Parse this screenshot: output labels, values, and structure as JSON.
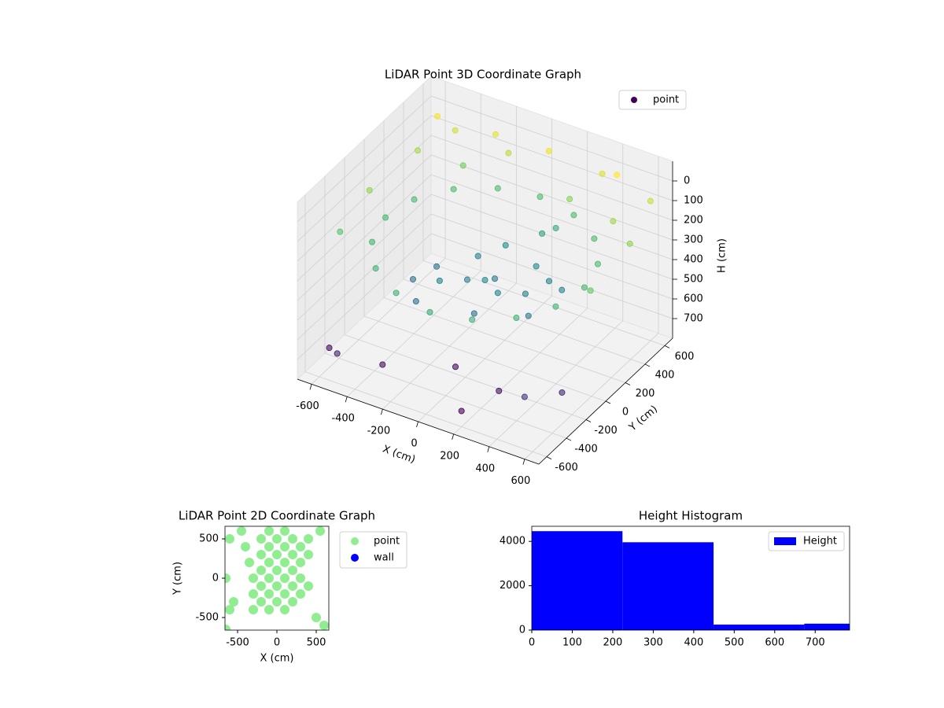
{
  "chart_data": [
    {
      "type": "scatter3d",
      "title": "LiDAR Point 3D Coordinate Graph",
      "xlabel": "X (cm)",
      "ylabel": "Y (cm)",
      "zlabel": "H (cm)",
      "xlim": [
        -680,
        680
      ],
      "ylim": [
        -680,
        680
      ],
      "zlim": [
        800,
        -100
      ],
      "xticks": [
        -600,
        -400,
        -200,
        0,
        200,
        400,
        600
      ],
      "yticks": [
        -600,
        -400,
        -200,
        0,
        200,
        400,
        600
      ],
      "zticks": [
        0,
        100,
        200,
        300,
        400,
        500,
        600,
        700
      ],
      "colormap": "viridis",
      "grid": true,
      "legend_loc": "upper right",
      "series": [
        {
          "name": "point",
          "color": "#440154",
          "x": [
            560,
            517,
            396,
            214,
            0,
            -214,
            -396,
            -517,
            -560,
            -517,
            -396,
            -214,
            0,
            214,
            396,
            517,
            -200,
            -100,
            0,
            100,
            200,
            -300,
            300,
            -150,
            150,
            50,
            -250,
            250,
            0,
            -50,
            350,
            -350,
            100,
            150,
            -600,
            -500,
            -300,
            0,
            300,
            600,
            650,
            650,
            -650,
            -650,
            -400,
            200,
            500,
            -600,
            400,
            -200,
            -500,
            0,
            300,
            500,
            -300,
            600,
            200,
            -600
          ],
          "y": [
            0,
            214,
            396,
            517,
            560,
            517,
            396,
            214,
            0,
            -214,
            -396,
            -517,
            -560,
            -517,
            -396,
            -214,
            -100,
            0,
            100,
            -50,
            50,
            50,
            -100,
            200,
            250,
            -200,
            -250,
            200,
            0,
            300,
            150,
            -100,
            400,
            450,
            400,
            600,
            650,
            650,
            650,
            600,
            300,
            -100,
            0,
            -300,
            500,
            500,
            400,
            600,
            620,
            600,
            -600,
            -300,
            -400,
            -500,
            -500,
            -300,
            -600,
            -500
          ],
          "z": [
            260,
            255,
            250,
            245,
            240,
            245,
            250,
            255,
            260,
            270,
            280,
            290,
            300,
            290,
            280,
            270,
            420,
            430,
            440,
            410,
            430,
            450,
            440,
            420,
            400,
            460,
            470,
            420,
            400,
            380,
            410,
            460,
            320,
            300,
            120,
            80,
            60,
            50,
            70,
            90,
            150,
            200,
            150,
            220,
            180,
            160,
            130,
            40,
            30,
            100,
            650,
            700,
            680,
            600,
            690,
            640,
            720,
            700
          ]
        }
      ]
    },
    {
      "type": "scatter",
      "title": "LiDAR Point 2D Coordinate Graph",
      "xlabel": "X (cm)",
      "ylabel": "Y (cm)",
      "xlim": [
        -660,
        660
      ],
      "ylim": [
        -660,
        660
      ],
      "xticks": [
        -500,
        0,
        500
      ],
      "yticks": [
        -500,
        0,
        500
      ],
      "legend_loc": "outside upper right",
      "series": [
        {
          "name": "point",
          "color": "#90ee90",
          "x": [
            -600,
            -600,
            -550,
            -450,
            -400,
            -350,
            -300,
            -300,
            -300,
            -200,
            -200,
            -200,
            -200,
            -200,
            -100,
            -100,
            -100,
            -100,
            -100,
            -100,
            0,
            0,
            0,
            0,
            0,
            100,
            100,
            100,
            100,
            100,
            100,
            200,
            200,
            200,
            200,
            200,
            300,
            300,
            300,
            300,
            400,
            400,
            400,
            500,
            550,
            -650,
            600,
            -650
          ],
          "y": [
            500,
            -400,
            -300,
            600,
            400,
            200,
            0,
            -200,
            -400,
            500,
            300,
            100,
            -100,
            -300,
            600,
            400,
            200,
            0,
            -200,
            -400,
            500,
            300,
            100,
            -100,
            -300,
            600,
            400,
            200,
            0,
            -200,
            -400,
            500,
            300,
            100,
            -100,
            -300,
            400,
            200,
            0,
            -200,
            500,
            300,
            -100,
            -500,
            600,
            -650,
            -600,
            0
          ]
        },
        {
          "name": "wall",
          "color": "#0000ff",
          "x": [],
          "y": []
        }
      ]
    },
    {
      "type": "histogram",
      "title": "Height Histogram",
      "bins": [
        0,
        224,
        449,
        673,
        785
      ],
      "xlim": [
        0,
        785
      ],
      "ylim": [
        0,
        4680
      ],
      "xticks": [
        0,
        100,
        200,
        300,
        400,
        500,
        600,
        700
      ],
      "yticks": [
        0,
        2000,
        4000
      ],
      "legend_loc": "upper right",
      "series": [
        {
          "name": "Height",
          "color": "#0000ff",
          "values": [
            4460,
            3960,
            250,
            290
          ]
        }
      ]
    }
  ]
}
